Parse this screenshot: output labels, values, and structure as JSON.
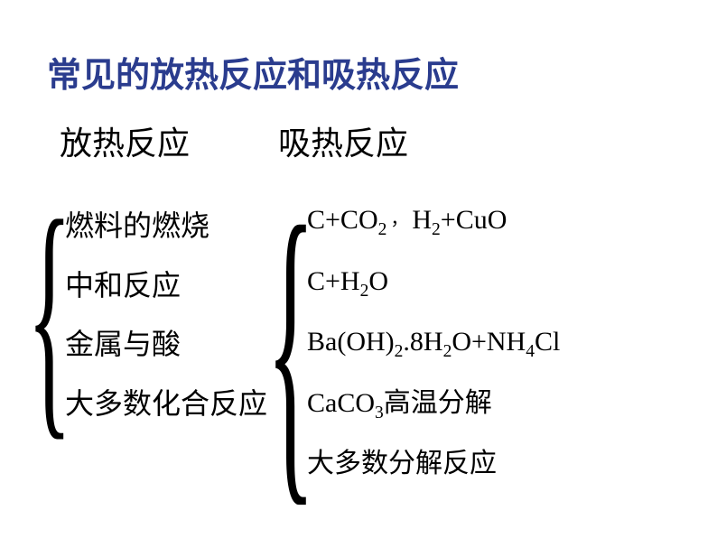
{
  "title": {
    "text": "常见的放热反应和吸热反应",
    "color": "#2a3c8e",
    "fontsize": 38
  },
  "columns": {
    "exothermic": {
      "heading": "放热反应",
      "items": [
        "燃料的燃烧",
        "中和反应",
        "金属与酸",
        "大多数化合反应"
      ]
    },
    "endothermic": {
      "heading": "吸热反应",
      "items": [
        {
          "parts": [
            "C+CO",
            {
              "sub": "2"
            },
            {
              "sep": "，"
            },
            "H",
            {
              "sub": "2"
            },
            "+CuO"
          ]
        },
        {
          "parts": [
            "C+H",
            {
              "sub": "2"
            },
            "O"
          ]
        },
        {
          "parts": [
            "Ba(OH)",
            {
              "sub": "2"
            },
            ".8H",
            {
              "sub": "2"
            },
            "O+NH",
            {
              "sub": "4"
            },
            "Cl"
          ]
        },
        {
          "parts": [
            "CaCO",
            {
              "sub": "3"
            },
            "高温分解"
          ]
        },
        {
          "parts": [
            "大多数分解反应"
          ]
        }
      ]
    }
  },
  "style": {
    "background_color": "#ffffff",
    "body_text_color": "#000000",
    "left_fontsize": 32,
    "right_fontsize": 30
  }
}
